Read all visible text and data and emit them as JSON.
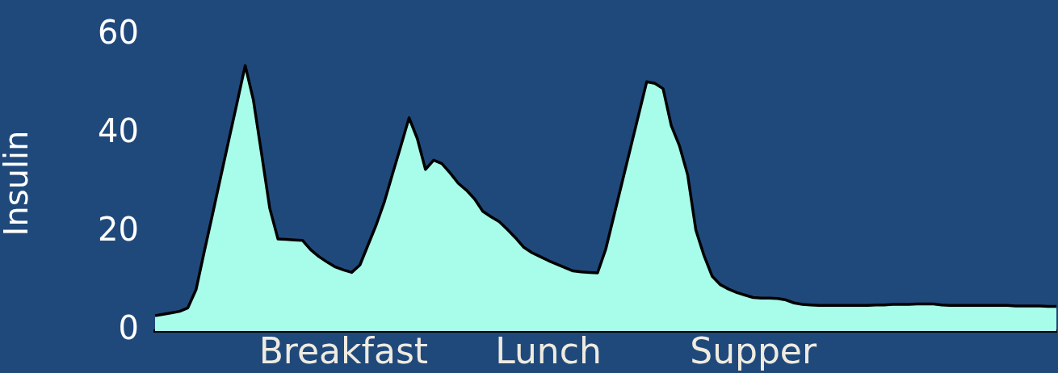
{
  "chart_data": {
    "type": "area",
    "ylabel": "Insulin",
    "categories": [
      null,
      null,
      null,
      null,
      null,
      null,
      null,
      null,
      null,
      null,
      null,
      null,
      null,
      null,
      null,
      null,
      null,
      null,
      null,
      null,
      null,
      null,
      null,
      "Breakfast",
      null,
      null,
      null,
      null,
      null,
      null,
      null,
      null,
      null,
      null,
      null,
      null,
      null,
      null,
      null,
      null,
      null,
      null,
      null,
      null,
      null,
      null,
      null,
      null,
      "Lunch",
      null,
      null,
      null,
      null,
      null,
      null,
      null,
      null,
      null,
      null,
      null,
      null,
      null,
      null,
      null,
      null,
      null,
      null,
      null,
      null,
      null,
      null,
      null,
      null,
      "Supper",
      null,
      null,
      null,
      null,
      null,
      null,
      null,
      null,
      null,
      null,
      null,
      null,
      null,
      null,
      null,
      null,
      null,
      null,
      null,
      null,
      null,
      null,
      null,
      null,
      null,
      null,
      null,
      null,
      null,
      null,
      null,
      null,
      null,
      null,
      null,
      null,
      null
    ],
    "series": [
      {
        "color": "#a8fdea",
        "values": [
          3.1,
          3.4,
          3.7,
          4.0,
          4.7,
          8.4,
          16.1,
          23.6,
          31.2,
          38.8,
          46.3,
          53.9,
          46.9,
          36.0,
          24.9,
          18.7,
          18.6,
          18.5,
          18.4,
          16.5,
          15.1,
          14.0,
          13.0,
          12.4,
          11.9,
          13.4,
          17.5,
          21.6,
          26.3,
          32.0,
          37.6,
          43.3,
          39.1,
          32.8,
          34.7,
          34.0,
          32.1,
          30.0,
          28.6,
          26.8,
          24.3,
          23.2,
          22.2,
          20.6,
          18.9,
          17.0,
          15.9,
          15.1,
          14.3,
          13.6,
          12.9,
          12.2,
          12.0,
          11.9,
          11.8,
          16.6,
          23.4,
          30.2,
          37.0,
          43.8,
          50.6,
          50.3,
          49.2,
          41.7,
          37.6,
          31.7,
          20.5,
          15.3,
          11.1,
          9.4,
          8.5,
          7.8,
          7.3,
          6.8,
          6.7,
          6.7,
          6.6,
          6.3,
          5.7,
          5.4,
          5.3,
          5.2,
          5.2,
          5.2,
          5.2,
          5.2,
          5.2,
          5.2,
          5.3,
          5.3,
          5.4,
          5.4,
          5.4,
          5.5,
          5.5,
          5.5,
          5.3,
          5.2,
          5.2,
          5.2,
          5.2,
          5.2,
          5.2,
          5.2,
          5.2,
          5.1,
          5.1,
          5.1,
          5.1,
          5.0,
          5.0
        ]
      }
    ],
    "ylim": [
      0,
      60
    ],
    "yticks": [
      0,
      20,
      40,
      60
    ],
    "grid": false,
    "legend": false,
    "marker": "none"
  }
}
